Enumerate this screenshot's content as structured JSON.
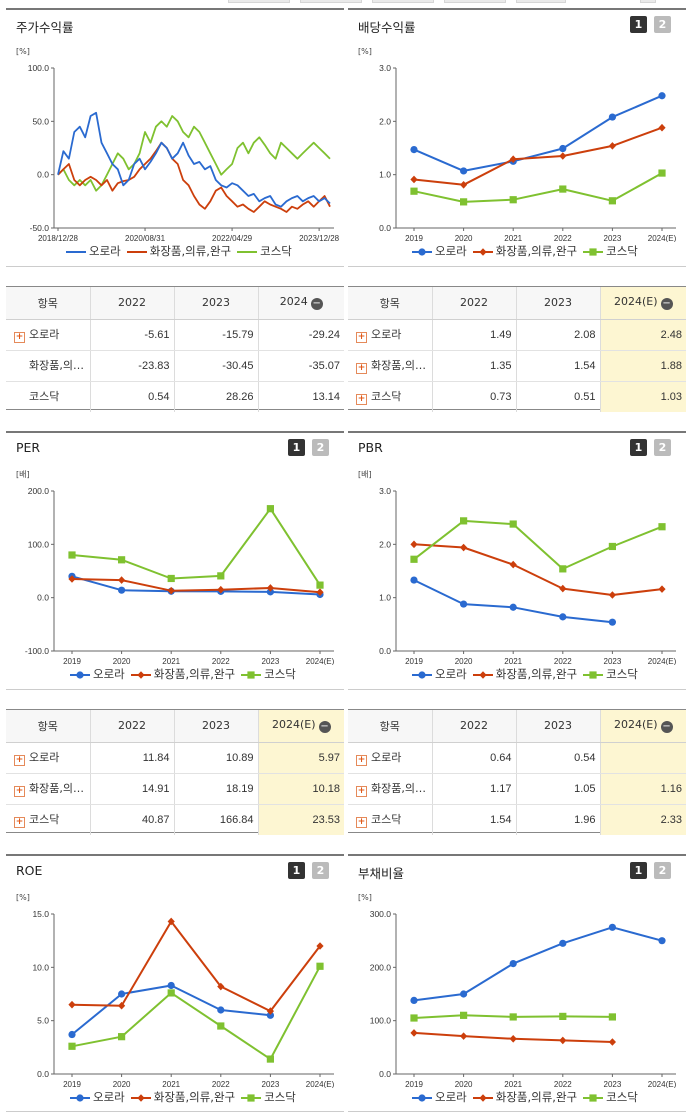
{
  "colors": {
    "s1": "#2a6ad0",
    "s2": "#cc3f0c",
    "s3": "#7fc130",
    "estBg": "#fdf6d2"
  },
  "legend": [
    "오로라",
    "화장품,의류,완구",
    "코스닥"
  ],
  "panels": [
    {
      "id": "price",
      "title": "주가수익률",
      "buttons": [],
      "chart_data": {
        "type": "line",
        "title": "주가수익률",
        "ylabel": "[%]",
        "ylim": [
          -50,
          100
        ],
        "grid": false,
        "yticks": [
          "100.0",
          "50.0",
          "0.0",
          "-50.0"
        ],
        "xticklabels": [
          "2018/12/28",
          "2020/08/31",
          "2022/04/29",
          "2023/12/28"
        ],
        "x": [
          0,
          2,
          4,
          6,
          8,
          10,
          12,
          14,
          16,
          18,
          20,
          22,
          24,
          26,
          28,
          30,
          32,
          34,
          36,
          38,
          40,
          42,
          44,
          46,
          48,
          50,
          52,
          54,
          56,
          58,
          60,
          62,
          64,
          66,
          68,
          70,
          72,
          74,
          76,
          78,
          80,
          82,
          84,
          86,
          88,
          90,
          92,
          94,
          96,
          98,
          100
        ],
        "series": [
          {
            "name": "오로라",
            "values": [
              0,
              22,
              15,
              40,
              45,
              35,
              55,
              58,
              30,
              20,
              10,
              5,
              -10,
              -5,
              10,
              15,
              5,
              12,
              20,
              30,
              25,
              15,
              20,
              30,
              18,
              10,
              12,
              5,
              8,
              -5,
              -10,
              -12,
              -8,
              -10,
              -15,
              -20,
              -18,
              -25,
              -22,
              -20,
              -28,
              -30,
              -25,
              -22,
              -20,
              -25,
              -22,
              -20,
              -25,
              -22,
              -27
            ]
          },
          {
            "name": "화장품,의류,완구",
            "values": [
              0,
              5,
              10,
              -5,
              -10,
              -5,
              -2,
              -5,
              -10,
              -5,
              -15,
              -8,
              -6,
              -5,
              -2,
              5,
              10,
              15,
              22,
              30,
              25,
              15,
              10,
              -5,
              -10,
              -20,
              -28,
              -32,
              -25,
              -15,
              -12,
              -20,
              -25,
              -30,
              -28,
              -32,
              -35,
              -30,
              -25,
              -28,
              -30,
              -32,
              -35,
              -30,
              -32,
              -28,
              -25,
              -30,
              -25,
              -20,
              -30
            ]
          },
          {
            "name": "코스닥",
            "values": [
              0,
              5,
              -5,
              -10,
              -5,
              -10,
              -5,
              -15,
              -10,
              0,
              10,
              20,
              15,
              5,
              10,
              20,
              40,
              30,
              45,
              50,
              45,
              55,
              50,
              40,
              35,
              45,
              40,
              30,
              20,
              10,
              0,
              5,
              10,
              25,
              30,
              20,
              30,
              35,
              28,
              20,
              15,
              30,
              25,
              20,
              15,
              20,
              25,
              30,
              25,
              20,
              15
            ]
          }
        ]
      },
      "table": {
        "headers": [
          "항목",
          "2022",
          "2023",
          "2024"
        ],
        "estimateLast": false,
        "rows": [
          {
            "name": "오로라",
            "plus": true,
            "vals": [
              "-5.61",
              "-15.79",
              "-29.24"
            ]
          },
          {
            "name": "화장품,의…",
            "plus": false,
            "vals": [
              "-23.83",
              "-30.45",
              "-35.07"
            ]
          },
          {
            "name": "코스닥",
            "plus": false,
            "vals": [
              "0.54",
              "28.26",
              "13.14"
            ]
          }
        ]
      }
    },
    {
      "id": "dividend",
      "title": "배당수익률",
      "buttons": [
        "1",
        "2"
      ],
      "chart_data": {
        "type": "line",
        "title": "배당수익률",
        "ylabel": "[%]",
        "ylim": [
          0,
          3
        ],
        "grid": false,
        "yticks": [
          "3.0",
          "2.0",
          "1.0",
          "0.0"
        ],
        "categories": [
          "2019",
          "2020",
          "2021",
          "2022",
          "2023",
          "2024(E)"
        ],
        "series": [
          {
            "name": "오로라",
            "values": [
              1.47,
              1.07,
              1.25,
              1.49,
              2.08,
              2.48
            ]
          },
          {
            "name": "화장품,의류,완구",
            "values": [
              0.91,
              0.81,
              1.29,
              1.35,
              1.54,
              1.88
            ]
          },
          {
            "name": "코스닥",
            "values": [
              0.69,
              0.49,
              0.53,
              0.73,
              0.51,
              1.03
            ]
          }
        ]
      },
      "table": {
        "headers": [
          "항목",
          "2022",
          "2023",
          "2024(E)"
        ],
        "estimateLast": true,
        "rows": [
          {
            "name": "오로라",
            "plus": true,
            "vals": [
              "1.49",
              "2.08",
              "2.48"
            ]
          },
          {
            "name": "화장품,의…",
            "plus": true,
            "vals": [
              "1.35",
              "1.54",
              "1.88"
            ]
          },
          {
            "name": "코스닥",
            "plus": true,
            "vals": [
              "0.73",
              "0.51",
              "1.03"
            ]
          }
        ]
      }
    },
    {
      "id": "per",
      "title": "PER",
      "buttons": [
        "1",
        "2"
      ],
      "chart_data": {
        "type": "line",
        "title": "PER",
        "ylabel": "[배]",
        "ylim": [
          -100,
          200
        ],
        "grid": false,
        "yticks": [
          "200.0",
          "100.0",
          "0.0",
          "-100.0"
        ],
        "categories": [
          "2019",
          "2020",
          "2021",
          "2022",
          "2023",
          "2024(E)"
        ],
        "series": [
          {
            "name": "오로라",
            "values": [
              40,
              14,
              12,
              11.84,
              10.89,
              5.97
            ]
          },
          {
            "name": "화장품,의류,완구",
            "values": [
              35,
              33,
              13,
              14.91,
              18.19,
              10.18
            ]
          },
          {
            "name": "코스닥",
            "values": [
              80,
              71,
              36,
              40.87,
              166.84,
              23.53
            ]
          }
        ]
      },
      "table": {
        "headers": [
          "항목",
          "2022",
          "2023",
          "2024(E)"
        ],
        "estimateLast": true,
        "rows": [
          {
            "name": "오로라",
            "plus": true,
            "vals": [
              "11.84",
              "10.89",
              "5.97"
            ]
          },
          {
            "name": "화장품,의…",
            "plus": true,
            "vals": [
              "14.91",
              "18.19",
              "10.18"
            ]
          },
          {
            "name": "코스닥",
            "plus": true,
            "vals": [
              "40.87",
              "166.84",
              "23.53"
            ]
          }
        ]
      }
    },
    {
      "id": "pbr",
      "title": "PBR",
      "buttons": [
        "1",
        "2"
      ],
      "chart_data": {
        "type": "line",
        "title": "PBR",
        "ylabel": "[배]",
        "ylim": [
          0,
          3
        ],
        "grid": false,
        "yticks": [
          "3.0",
          "2.0",
          "1.0",
          "0.0"
        ],
        "categories": [
          "2019",
          "2020",
          "2021",
          "2022",
          "2023",
          "2024(E)"
        ],
        "series": [
          {
            "name": "오로라",
            "values": [
              1.33,
              0.88,
              0.82,
              0.64,
              0.54,
              null
            ]
          },
          {
            "name": "화장품,의류,완구",
            "values": [
              2.0,
              1.94,
              1.62,
              1.17,
              1.05,
              1.16
            ]
          },
          {
            "name": "코스닥",
            "values": [
              1.72,
              2.44,
              2.38,
              1.54,
              1.96,
              2.33
            ]
          }
        ]
      },
      "table": {
        "headers": [
          "항목",
          "2022",
          "2023",
          "2024(E)"
        ],
        "estimateLast": true,
        "rows": [
          {
            "name": "오로라",
            "plus": true,
            "vals": [
              "0.64",
              "0.54",
              ""
            ]
          },
          {
            "name": "화장품,의…",
            "plus": true,
            "vals": [
              "1.17",
              "1.05",
              "1.16"
            ]
          },
          {
            "name": "코스닥",
            "plus": true,
            "vals": [
              "1.54",
              "1.96",
              "2.33"
            ]
          }
        ]
      }
    },
    {
      "id": "roe",
      "title": "ROE",
      "buttons": [
        "1",
        "2"
      ],
      "chart_data": {
        "type": "line",
        "title": "ROE",
        "ylabel": "[%]",
        "ylim": [
          0,
          15
        ],
        "grid": false,
        "yticks": [
          "15.0",
          "10.0",
          "5.0",
          "0.0"
        ],
        "categories": [
          "2019",
          "2020",
          "2021",
          "2022",
          "2023",
          "2024(E)"
        ],
        "series": [
          {
            "name": "오로라",
            "values": [
              3.7,
              7.5,
              8.3,
              6.0,
              5.5,
              null
            ]
          },
          {
            "name": "화장품,의류,완구",
            "values": [
              6.5,
              6.4,
              14.3,
              8.2,
              5.9,
              12.0
            ]
          },
          {
            "name": "코스닥",
            "values": [
              2.6,
              3.5,
              7.6,
              4.5,
              1.4,
              10.1
            ]
          }
        ]
      },
      "table": null
    },
    {
      "id": "debt",
      "title": "부채비율",
      "buttons": [
        "1",
        "2"
      ],
      "chart_data": {
        "type": "line",
        "title": "부채비율",
        "ylabel": "[%]",
        "ylim": [
          0,
          300
        ],
        "grid": false,
        "yticks": [
          "300.0",
          "200.0",
          "100.0",
          "0.0"
        ],
        "categories": [
          "2019",
          "2020",
          "2021",
          "2022",
          "2023",
          "2024(E)"
        ],
        "series": [
          {
            "name": "오로라",
            "values": [
              138,
              150,
              207,
              245,
              275,
              250
            ]
          },
          {
            "name": "화장품,의류,완구",
            "values": [
              77,
              71,
              66,
              63,
              60,
              null
            ]
          },
          {
            "name": "코스닥",
            "values": [
              105,
              110,
              107,
              108,
              107,
              null
            ]
          }
        ]
      },
      "table": null
    }
  ]
}
